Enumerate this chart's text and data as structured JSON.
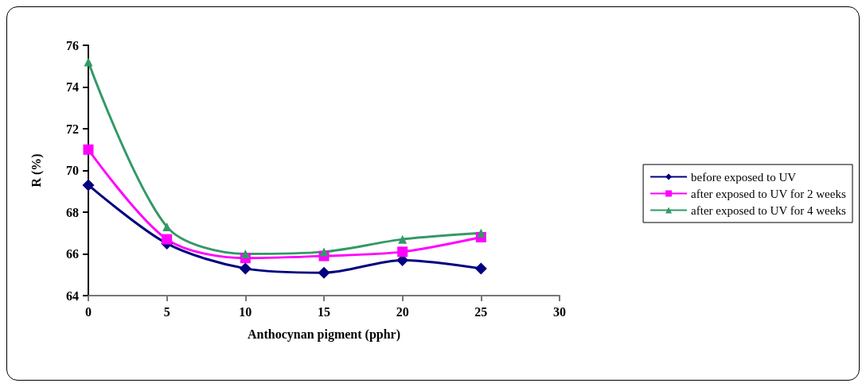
{
  "chart_data": {
    "type": "line",
    "xlabel": "Anthocynan pigment (pphr)",
    "ylabel": "R (%)",
    "x": [
      0,
      5,
      10,
      15,
      20,
      25
    ],
    "xlim": [
      0,
      30
    ],
    "xticks": [
      0,
      5,
      10,
      15,
      20,
      25,
      30
    ],
    "ylim": [
      64,
      76
    ],
    "yticks": [
      64,
      66,
      68,
      70,
      72,
      74,
      76
    ],
    "grid": false,
    "legend": "right",
    "series": [
      {
        "name": "before exposed to UV",
        "color": "#000080",
        "marker": "diamond",
        "values": [
          69.3,
          66.5,
          65.3,
          65.1,
          65.7,
          65.3
        ]
      },
      {
        "name": "after exposed to UV for 2 weeks",
        "color": "#ff00ff",
        "marker": "square",
        "values": [
          71.0,
          66.7,
          65.8,
          65.9,
          66.1,
          66.8
        ]
      },
      {
        "name": "after exposed to UV for 4 weeks",
        "color": "#339966",
        "marker": "triangle",
        "values": [
          75.2,
          67.3,
          66.0,
          66.1,
          66.7,
          67.0
        ]
      }
    ]
  }
}
